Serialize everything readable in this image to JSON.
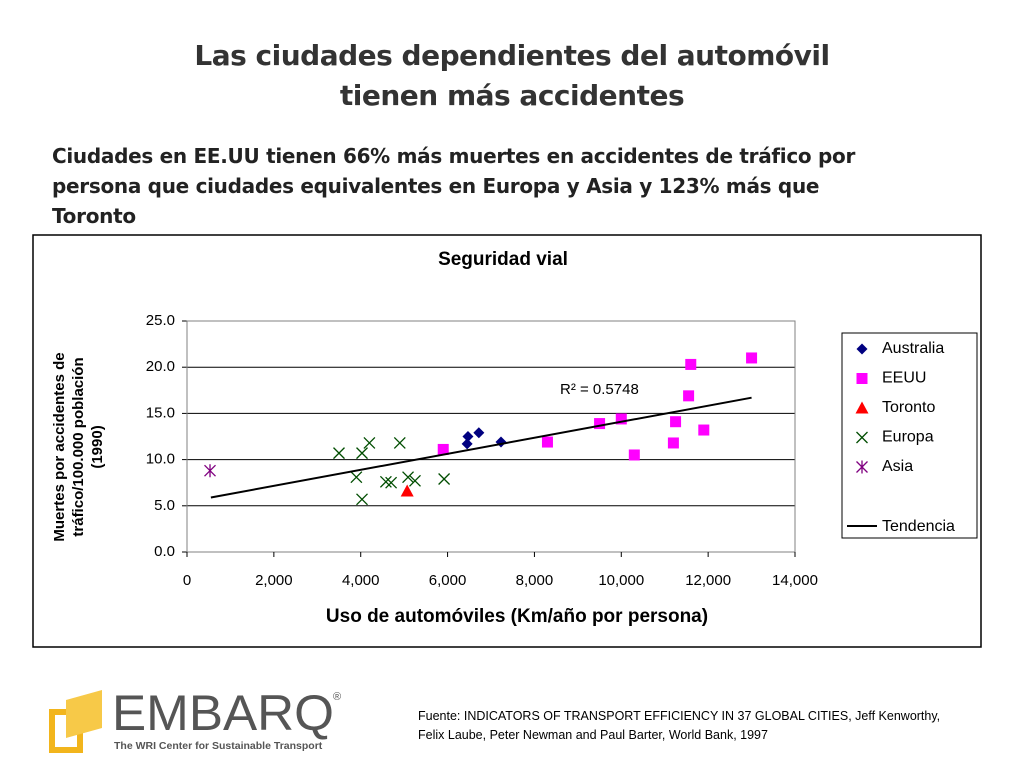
{
  "header": {
    "title_lines": [
      "Las ciudades dependientes del automóvil",
      "tienen más accidentes"
    ],
    "subtitle_lines": [
      "Ciudades en EE.UU tienen 66% más muertes en accidentes de tráfico por",
      "persona que ciudades equivalentes en Europa y Asia y 123% más que",
      "Toronto"
    ]
  },
  "chart_data": {
    "type": "scatter",
    "title": "Seguridad vial",
    "xlabel": "Uso de automóviles (Km/año por persona)",
    "ylabel_lines": [
      "Muertes por accidentes de",
      "tráfico/100.000 población",
      "(1990)"
    ],
    "xlim": [
      0,
      14000
    ],
    "ylim": [
      0,
      25
    ],
    "xticks": [
      0,
      {
        "value": 2000,
        "label": "2,000"
      },
      {
        "value": 4000,
        "label": "4,000"
      },
      {
        "value": 6000,
        "label": "6,000"
      },
      {
        "value": 8000,
        "label": "8,000"
      },
      {
        "value": 10000,
        "label": "10,000"
      },
      {
        "value": 12000,
        "label": "12,000"
      },
      {
        "value": 14000,
        "label": "14,000"
      }
    ],
    "yticks": [
      {
        "value": 0,
        "label": "0.0"
      },
      {
        "value": 5,
        "label": "5.0"
      },
      {
        "value": 10,
        "label": "10.0"
      },
      {
        "value": 15,
        "label": "15.0"
      },
      {
        "value": 20,
        "label": "20.0"
      },
      {
        "value": 25,
        "label": "25.0"
      }
    ],
    "grid": true,
    "legend": "right",
    "series": [
      {
        "name": "Australia",
        "color": "#000080",
        "marker": "diamond",
        "x": [
          6470,
          6450,
          6720,
          7230
        ],
        "values": [
          12.5,
          11.7,
          12.9,
          11.9
        ]
      },
      {
        "name": "EEUU",
        "color": "#ff00ff",
        "marker": "square",
        "x": [
          5900,
          8300,
          9500,
          10000,
          10300,
          11200,
          11250,
          11600,
          11550,
          11900,
          13000
        ],
        "values": [
          11.1,
          11.9,
          13.9,
          14.4,
          10.5,
          11.8,
          14.1,
          20.3,
          16.9,
          13.2,
          21.0
        ]
      },
      {
        "name": "Toronto",
        "color": "#ff0000",
        "marker": "triangle",
        "x": [
          5070
        ],
        "values": [
          6.6
        ]
      },
      {
        "name": "Europa",
        "color": "#004d00",
        "marker": "x",
        "x": [
          3500,
          4200,
          4900,
          4030,
          3900,
          4030,
          4580,
          4700,
          5090,
          5250,
          5920
        ],
        "values": [
          10.7,
          11.8,
          11.8,
          10.7,
          8.1,
          5.7,
          7.6,
          7.5,
          8.1,
          7.7,
          7.9
        ]
      },
      {
        "name": "Asia",
        "color": "#800080",
        "marker": "star",
        "x": [
          530
        ],
        "values": [
          8.8
        ]
      }
    ],
    "trend": {
      "name": "Tendencia",
      "color": "#000000",
      "x": [
        550,
        13000
      ],
      "values": [
        5.9,
        16.7
      ]
    },
    "annotation": "R² = 0.5748"
  },
  "footer": {
    "source_lines": [
      "Fuente: INDICATORS OF TRANSPORT EFFICIENCY IN 37 GLOBAL CITIES, Jeff Kenworthy,",
      "Felix Laube, Peter Newman and Paul Barter, World Bank, 1997"
    ],
    "logo": "EMBARQ",
    "logo_mark": "®",
    "logo_tagline": "The WRI Center for Sustainable Transport"
  }
}
